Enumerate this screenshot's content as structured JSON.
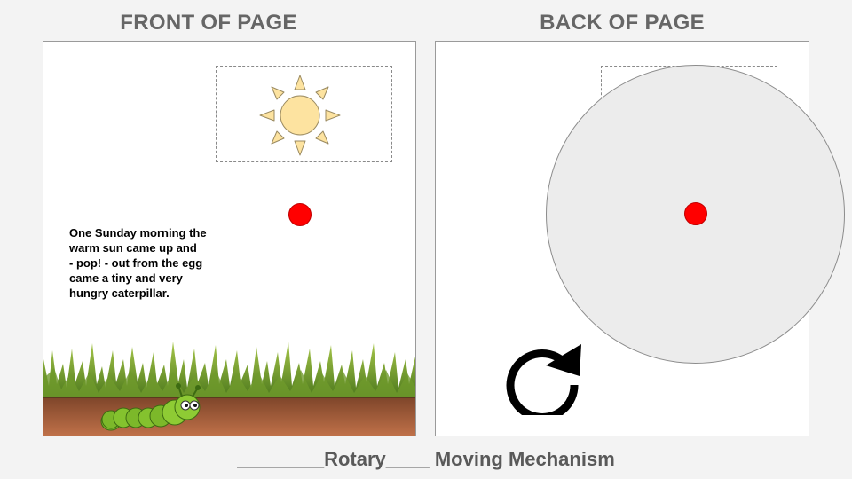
{
  "headings": {
    "front": "FRONT OF PAGE",
    "back": "BACK OF PAGE"
  },
  "front": {
    "story_lines": [
      "One Sunday morning the",
      "warm sun came up and",
      "- pop! - out from the egg",
      "came a tiny and very",
      "hungry caterpillar."
    ],
    "images": [
      "sun-icon",
      "grass",
      "soil",
      "caterpillar"
    ],
    "pin_color": "#ff0000"
  },
  "back": {
    "wheel_color": "#ececec",
    "pin_color": "#ff0000",
    "icon": "clockwise-rotate-icon"
  },
  "caption": "________Rotary____ Moving Mechanism"
}
